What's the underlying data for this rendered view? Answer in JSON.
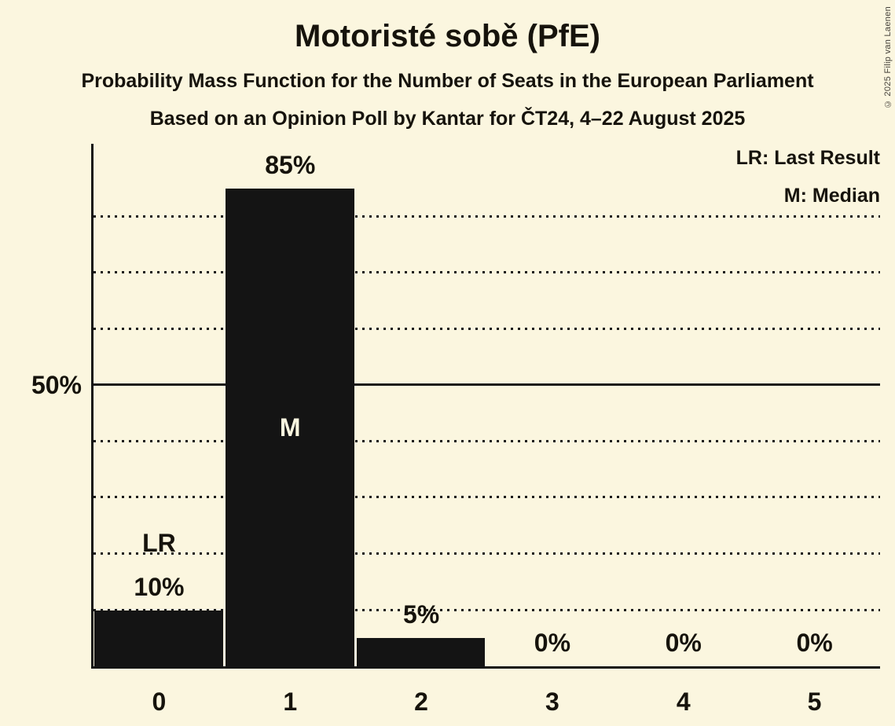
{
  "header": {
    "title": "Motoristé sobě (PfE)",
    "subtitle1": "Probability Mass Function for the Number of Seats in the European Parliament",
    "subtitle2": "Based on an Opinion Poll by Kantar for ČT24, 4–22 August 2025"
  },
  "legend": {
    "last_result": "LR: Last Result",
    "median": "M: Median"
  },
  "footer": {
    "copyright": "© 2025 Filip van Laenen"
  },
  "chart_data": {
    "type": "bar",
    "title": "Motoristé sobě (PfE)",
    "categories": [
      "0",
      "1",
      "2",
      "3",
      "4",
      "5"
    ],
    "values": [
      10,
      85,
      5,
      0,
      0,
      0
    ],
    "bar_labels": [
      "10%",
      "85%",
      "5%",
      "0%",
      "0%",
      "0%"
    ],
    "annotations": {
      "last_result_seat_index": 0,
      "last_result_label": "LR",
      "median_seat_index": 1,
      "median_label": "M"
    },
    "y_axis": {
      "tick_label": "50%",
      "tick_value": 50,
      "dotted_gridlines_percent": [
        10,
        20,
        30,
        40,
        60,
        70,
        80
      ],
      "solid_gridline_percent": 50,
      "axis_max_percent": 93
    },
    "grid": "dotted-horizontal",
    "legend_position": "top-right",
    "colors": {
      "background": "#FBF6DF",
      "bar": "#141414",
      "text": "#16130c",
      "gridline": "#1a1a1a",
      "label_inside_bar": "#FBF6DF"
    }
  }
}
